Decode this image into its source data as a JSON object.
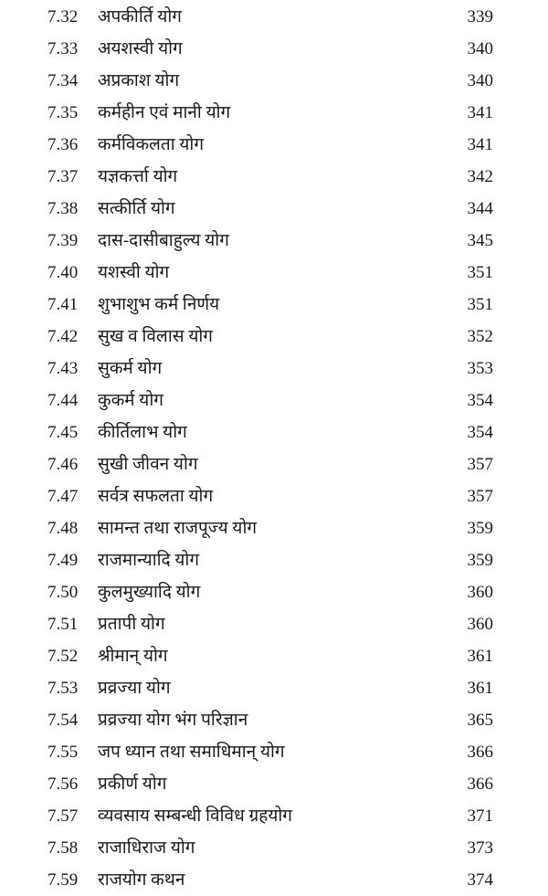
{
  "entries": [
    {
      "num": "7.32",
      "title": "अपकीर्ति योग",
      "page": "339"
    },
    {
      "num": "7.33",
      "title": "अयशस्वी योग",
      "page": "340"
    },
    {
      "num": "7.34",
      "title": "अप्रकाश योग",
      "page": "340"
    },
    {
      "num": "7.35",
      "title": "कर्महीन एवं मानी योग",
      "page": "341"
    },
    {
      "num": "7.36",
      "title": "कर्मविकलता योग",
      "page": "341"
    },
    {
      "num": "7.37",
      "title": "यज्ञकर्त्ता योग",
      "page": "342"
    },
    {
      "num": "7.38",
      "title": "सत्कीर्ति योग",
      "page": "344"
    },
    {
      "num": "7.39",
      "title": "दास-दासीबाहुल्य योग",
      "page": "345"
    },
    {
      "num": "7.40",
      "title": "यशस्वी योग",
      "page": "351"
    },
    {
      "num": "7.41",
      "title": "शुभाशुभ कर्म निर्णय",
      "page": "351"
    },
    {
      "num": "7.42",
      "title": "सुख व विलास योग",
      "page": "352"
    },
    {
      "num": "7.43",
      "title": "सुकर्म योग",
      "page": "353"
    },
    {
      "num": "7.44",
      "title": "कुकर्म योग",
      "page": "354"
    },
    {
      "num": "7.45",
      "title": "कीर्तिलाभ योग",
      "page": "354"
    },
    {
      "num": "7.46",
      "title": "सुखी जीवन योग",
      "page": "357"
    },
    {
      "num": "7.47",
      "title": "सर्वत्र सफलता योग",
      "page": "357"
    },
    {
      "num": "7.48",
      "title": "सामन्त तथा राजपूज्य योग",
      "page": "359"
    },
    {
      "num": "7.49",
      "title": "राजमान्यादि योग",
      "page": "359"
    },
    {
      "num": "7.50",
      "title": "कुलमुख्यादि योग",
      "page": "360"
    },
    {
      "num": "7.51",
      "title": "प्रतापी योग",
      "page": "360"
    },
    {
      "num": "7.52",
      "title": "श्रीमान् योग",
      "page": "361"
    },
    {
      "num": "7.53",
      "title": "प्रव्रज्या योग",
      "page": "361"
    },
    {
      "num": "7.54",
      "title": "प्रव्रज्या योग भंग परिज्ञान",
      "page": "365"
    },
    {
      "num": "7.55",
      "title": "जप ध्यान तथा समाधिमान् योग",
      "page": "366"
    },
    {
      "num": "7.56",
      "title": "प्रकीर्ण योग",
      "page": "366"
    },
    {
      "num": "7.57",
      "title": "व्यवसाय सम्बन्धी विविध ग्रहयोग",
      "page": "371"
    },
    {
      "num": "7.58",
      "title": "राजाधिराज योग",
      "page": "373"
    },
    {
      "num": "7.59",
      "title": "राजयोग कथन",
      "page": "374"
    }
  ]
}
